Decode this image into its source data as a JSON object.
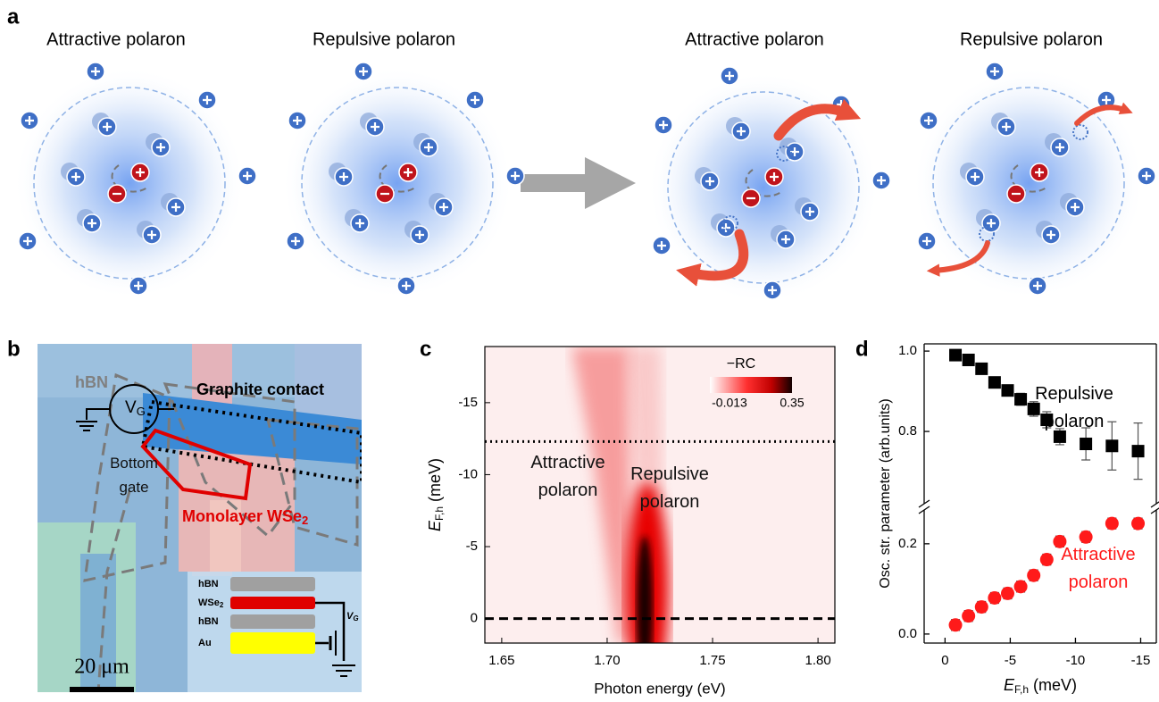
{
  "panel_a": {
    "label": "a",
    "diagrams": [
      {
        "title": "Attractive polaron"
      },
      {
        "title": "Repulsive polaron"
      },
      {
        "title": "Attractive polaron"
      },
      {
        "title": "Repulsive polaron"
      }
    ]
  },
  "panel_b": {
    "label": "b",
    "hbn": "hBN",
    "graphite": "Graphite contact",
    "flake": {
      "text": "Monolayer WSe",
      "sub": "2"
    },
    "gate_source": {
      "text": "V",
      "sub": "G"
    },
    "gate_label": "Bottom gate",
    "scale_bar": "20 μm",
    "stack": [
      {
        "text": "hBN"
      },
      {
        "text": "WSe",
        "sub": "2"
      },
      {
        "text": "hBN"
      },
      {
        "text": "Au"
      }
    ],
    "stack_gate": {
      "text": "V",
      "sub": "G"
    }
  },
  "chart_data": [
    {
      "type": "heatmap",
      "label": "c",
      "xlabel": "Photon energy (eV)",
      "ylabel": {
        "symbol": "E",
        "sub": "F,h",
        "unit": "(meV)"
      },
      "xlim": [
        1.642,
        1.808
      ],
      "xticks": [
        1.65,
        {
          "value": 1.7,
          "label": "1.70"
        },
        1.75,
        {
          "value": 1.8,
          "label": "1.80"
        }
      ],
      "ylim": [
        1.7,
        -18.9
      ],
      "yticks": [
        0,
        -5,
        -10,
        -15
      ],
      "colorbar": {
        "title": "−RC",
        "range": [
          -0.013,
          0.35
        ]
      },
      "hlines": [
        {
          "value": -12.3,
          "style": "dotted"
        },
        {
          "value": 0,
          "style": "dashed"
        }
      ],
      "annotations": [
        "Attractive polaron",
        "Repulsive polaron"
      ]
    },
    {
      "type": "scatter",
      "label": "d",
      "xlabel": {
        "symbol": "E",
        "sub": "F,h",
        "unit": "(meV)"
      },
      "ylabel": "Osc. str. parameter (arb.units)",
      "xlim": [
        1.6,
        -16.2
      ],
      "xticks": [
        0,
        -5,
        -10,
        -15
      ],
      "ylim": [
        -0.02,
        0.267
      ],
      "yticks": [
        {
          "value": 0,
          "label": "0.0"
        },
        0.2
      ],
      "y2lim": [
        0.629,
        1.018
      ],
      "y2ticks": [
        0.8,
        {
          "value": 1,
          "label": "1.0"
        }
      ],
      "x": [
        -0.8,
        -1.8,
        -2.8,
        -3.8,
        -4.8,
        -5.8,
        -6.8,
        -7.8,
        -8.8,
        -10.8,
        -12.8,
        -14.8
      ],
      "series": [
        {
          "name": "Repulsive polaron",
          "color": "#000000",
          "marker": "square",
          "axis": "y2",
          "values": [
            0.99,
            0.978,
            0.956,
            0.922,
            0.902,
            0.88,
            0.856,
            0.829,
            0.787,
            0.769,
            0.764,
            0.751
          ],
          "errors": [
            0.01,
            0.01,
            0.01,
            0.012,
            0.012,
            0.015,
            0.018,
            0.02,
            0.02,
            0.04,
            0.06,
            0.07
          ]
        },
        {
          "name": "Attractive polaron",
          "color": "#ff1a1a",
          "marker": "circle",
          "values": [
            0.02,
            0.04,
            0.06,
            0.08,
            0.09,
            0.105,
            0.13,
            0.165,
            0.205,
            0.215,
            0.245,
            0.245
          ],
          "errors": [
            0.012,
            0.012,
            0.012,
            0.012,
            0.012,
            0.012,
            0.012,
            0.012,
            0.012,
            0.012,
            0.012,
            0.012
          ]
        }
      ]
    }
  ]
}
